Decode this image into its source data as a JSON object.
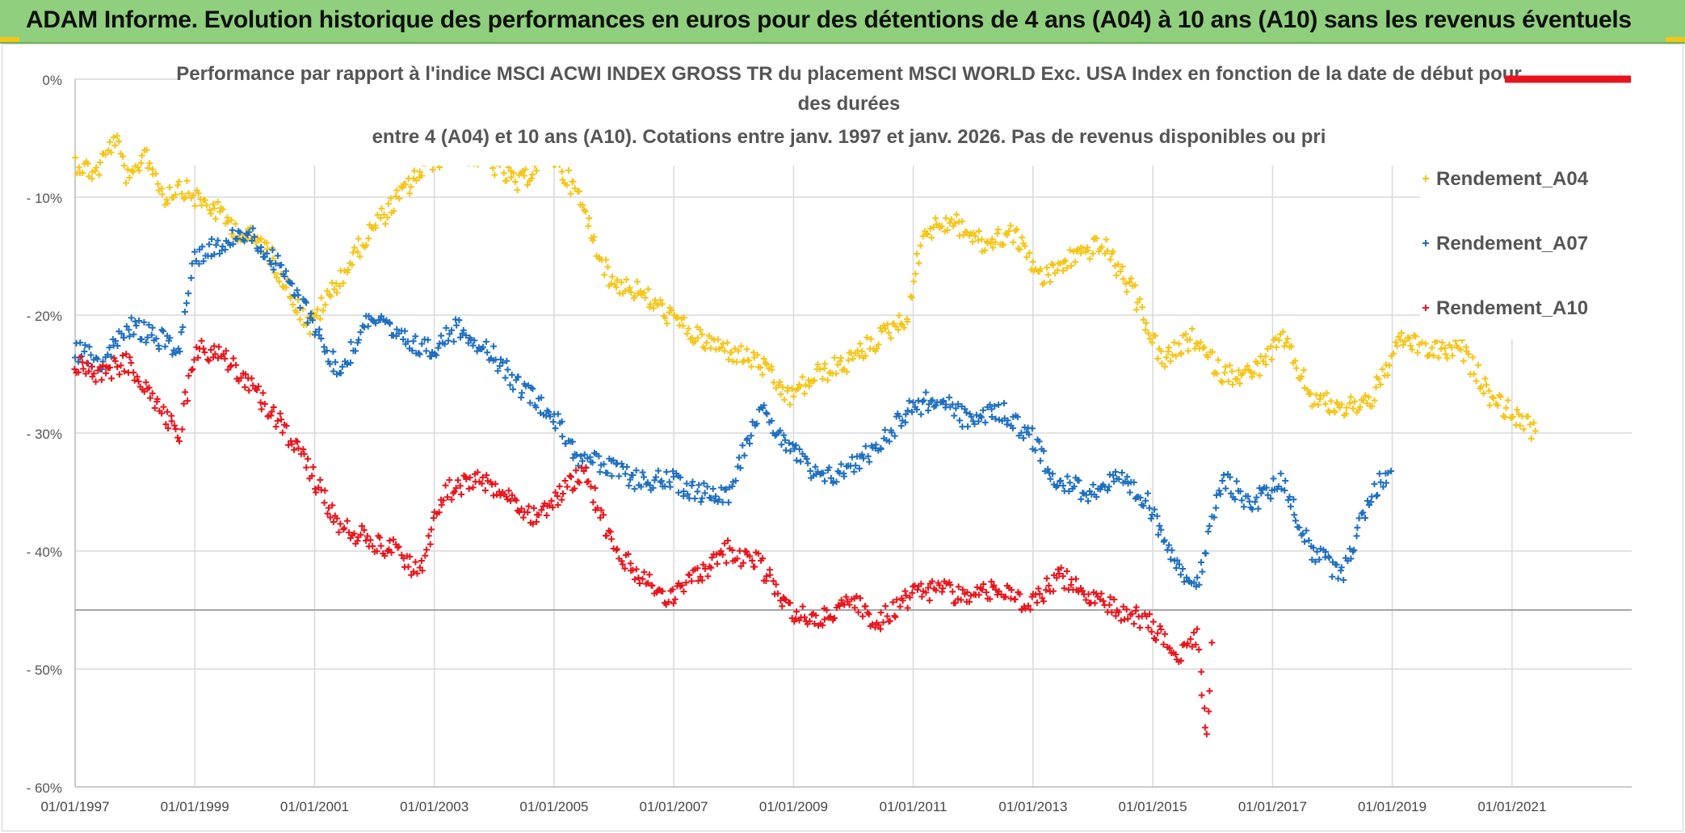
{
  "banner": {
    "title": "ADAM Informe. Evolution historique des performances en euros pour des détentions de 4 ans (A04) à 10 ans (A10) sans les revenus éventuels"
  },
  "chart_data": {
    "type": "scatter",
    "title_lines": [
      "Performance par rapport à l'indice MSCI ACWI INDEX GROSS TR  du placement MSCI WORLD Exc. USA Index en fonction de la date de début pour",
      "des durées",
      "entre 4 (A04) et 10 ans (A10). Cotations entre janv. 1997 et janv. 2026. Pas de revenus disponibles ou pri"
    ],
    "xlabel": "",
    "ylabel": "",
    "xlim": [
      "1997-01-01",
      "2023-01-01"
    ],
    "ylim": [
      -60,
      0
    ],
    "x_ticks": [
      "01/01/1997",
      "01/01/1999",
      "01/01/2001",
      "01/01/2003",
      "01/01/2005",
      "01/01/2007",
      "01/01/2009",
      "01/01/2011",
      "01/01/2013",
      "01/01/2015",
      "01/01/2017",
      "01/01/2019",
      "01/01/2021"
    ],
    "y_ticks": [
      "0%",
      "- 10%",
      "- 20%",
      "- 30%",
      "- 40%",
      "- 50%",
      "- 60%"
    ],
    "y_tick_values": [
      0,
      -10,
      -20,
      -30,
      -40,
      -50,
      -60
    ],
    "grid": true,
    "reference_line": -45,
    "legend_position": "right",
    "series": [
      {
        "name": "Rendement_A04",
        "color": "#f5c518",
        "marker": "plus",
        "points": [
          [
            "1997-01-01",
            -7
          ],
          [
            "1997-05-01",
            -8
          ],
          [
            "1997-09-01",
            -5
          ],
          [
            "1997-12-01",
            -9
          ],
          [
            "1998-03-01",
            -6
          ],
          [
            "1998-07-01",
            -10
          ],
          [
            "1998-10-01",
            -9
          ],
          [
            "1999-01-01",
            -10
          ],
          [
            "1999-05-01",
            -11
          ],
          [
            "1999-10-01",
            -13
          ],
          [
            "2000-03-01",
            -14
          ],
          [
            "2000-08-01",
            -18
          ],
          [
            "2000-12-01",
            -21
          ],
          [
            "2001-06-01",
            -17
          ],
          [
            "2001-12-01",
            -13
          ],
          [
            "2002-06-01",
            -10
          ],
          [
            "2002-12-01",
            -7
          ],
          [
            "2003-06-01",
            -6
          ],
          [
            "2003-12-01",
            -7
          ],
          [
            "2004-06-01",
            -9
          ],
          [
            "2004-12-01",
            -6
          ],
          [
            "2005-06-01",
            -10
          ],
          [
            "2005-12-01",
            -17
          ],
          [
            "2006-06-01",
            -18
          ],
          [
            "2006-12-01",
            -20
          ],
          [
            "2007-06-01",
            -22
          ],
          [
            "2007-12-01",
            -23
          ],
          [
            "2008-06-01",
            -24
          ],
          [
            "2008-12-01",
            -27
          ],
          [
            "2009-06-01",
            -25
          ],
          [
            "2009-12-01",
            -24
          ],
          [
            "2010-06-01",
            -22
          ],
          [
            "2010-12-01",
            -20
          ],
          [
            "2011-03-01",
            -13
          ],
          [
            "2011-09-01",
            -12
          ],
          [
            "2012-03-01",
            -14
          ],
          [
            "2012-09-01",
            -13
          ],
          [
            "2013-03-01",
            -17
          ],
          [
            "2013-09-01",
            -15
          ],
          [
            "2014-03-01",
            -14
          ],
          [
            "2014-09-01",
            -18
          ],
          [
            "2015-03-01",
            -24
          ],
          [
            "2015-09-01",
            -22
          ],
          [
            "2016-03-01",
            -25
          ],
          [
            "2016-09-01",
            -25
          ],
          [
            "2017-03-01",
            -22
          ],
          [
            "2017-09-01",
            -27
          ],
          [
            "2018-03-01",
            -28
          ],
          [
            "2018-09-01",
            -27
          ],
          [
            "2019-03-01",
            -22
          ],
          [
            "2019-09-01",
            -23
          ],
          [
            "2020-03-01",
            -23
          ],
          [
            "2020-09-01",
            -27
          ],
          [
            "2021-06-01",
            -30
          ]
        ]
      },
      {
        "name": "Rendement_A07",
        "color": "#1f6fbf",
        "marker": "plus",
        "points": [
          [
            "1997-01-01",
            -23
          ],
          [
            "1997-06-01",
            -24
          ],
          [
            "1997-12-01",
            -21
          ],
          [
            "1998-06-01",
            -22
          ],
          [
            "1998-10-01",
            -23
          ],
          [
            "1999-01-01",
            -15
          ],
          [
            "1999-06-01",
            -14
          ],
          [
            "1999-12-01",
            -13
          ],
          [
            "2000-06-01",
            -16
          ],
          [
            "2000-12-01",
            -20
          ],
          [
            "2001-06-01",
            -25
          ],
          [
            "2001-12-01",
            -20
          ],
          [
            "2002-06-01",
            -22
          ],
          [
            "2002-12-01",
            -23
          ],
          [
            "2003-06-01",
            -21
          ],
          [
            "2003-12-01",
            -23
          ],
          [
            "2004-06-01",
            -26
          ],
          [
            "2004-12-01",
            -28
          ],
          [
            "2005-06-01",
            -32
          ],
          [
            "2005-12-01",
            -33
          ],
          [
            "2006-06-01",
            -34
          ],
          [
            "2006-12-01",
            -34
          ],
          [
            "2007-06-01",
            -35
          ],
          [
            "2007-12-01",
            -35
          ],
          [
            "2008-06-01",
            -28
          ],
          [
            "2008-12-01",
            -31
          ],
          [
            "2009-06-01",
            -34
          ],
          [
            "2009-12-01",
            -33
          ],
          [
            "2010-06-01",
            -31
          ],
          [
            "2010-12-01",
            -28
          ],
          [
            "2011-06-01",
            -27
          ],
          [
            "2011-12-01",
            -29
          ],
          [
            "2012-06-01",
            -28
          ],
          [
            "2012-12-01",
            -30
          ],
          [
            "2013-06-01",
            -34
          ],
          [
            "2013-12-01",
            -35
          ],
          [
            "2014-06-01",
            -34
          ],
          [
            "2014-12-01",
            -36
          ],
          [
            "2015-06-01",
            -41
          ],
          [
            "2015-10-01",
            -43
          ],
          [
            "2016-03-01",
            -34
          ],
          [
            "2016-09-01",
            -36
          ],
          [
            "2017-03-01",
            -34
          ],
          [
            "2017-09-01",
            -40
          ],
          [
            "2018-03-01",
            -42
          ],
          [
            "2018-09-01",
            -35
          ],
          [
            "2019-01-01",
            -33
          ]
        ]
      },
      {
        "name": "Rendement_A10",
        "color": "#e8141c",
        "marker": "plus",
        "points": [
          [
            "1997-01-01",
            -24
          ],
          [
            "1997-06-01",
            -25
          ],
          [
            "1997-12-01",
            -24
          ],
          [
            "1998-06-01",
            -28
          ],
          [
            "1998-10-01",
            -30
          ],
          [
            "1999-01-01",
            -23
          ],
          [
            "1999-06-01",
            -23
          ],
          [
            "1999-12-01",
            -26
          ],
          [
            "2000-06-01",
            -29
          ],
          [
            "2000-12-01",
            -33
          ],
          [
            "2001-06-01",
            -38
          ],
          [
            "2001-12-01",
            -39
          ],
          [
            "2002-06-01",
            -40
          ],
          [
            "2002-10-01",
            -42
          ],
          [
            "2003-03-01",
            -35
          ],
          [
            "2003-09-01",
            -34
          ],
          [
            "2004-03-01",
            -35
          ],
          [
            "2004-09-01",
            -37
          ],
          [
            "2005-03-01",
            -35
          ],
          [
            "2005-07-01",
            -33
          ],
          [
            "2006-01-01",
            -40
          ],
          [
            "2006-06-01",
            -42
          ],
          [
            "2006-12-01",
            -44
          ],
          [
            "2007-06-01",
            -42
          ],
          [
            "2007-12-01",
            -40
          ],
          [
            "2008-06-01",
            -41
          ],
          [
            "2008-12-01",
            -45
          ],
          [
            "2009-06-01",
            -46
          ],
          [
            "2009-12-01",
            -44
          ],
          [
            "2010-06-01",
            -46
          ],
          [
            "2010-12-01",
            -44
          ],
          [
            "2011-06-01",
            -43
          ],
          [
            "2011-12-01",
            -44
          ],
          [
            "2012-06-01",
            -43
          ],
          [
            "2012-12-01",
            -45
          ],
          [
            "2013-06-01",
            -42
          ],
          [
            "2013-12-01",
            -44
          ],
          [
            "2014-06-01",
            -45
          ],
          [
            "2014-12-01",
            -46
          ],
          [
            "2015-06-01",
            -49
          ],
          [
            "2015-10-01",
            -47
          ],
          [
            "2016-01-01",
            -46
          ],
          [
            "2015-12-01",
            -56
          ]
        ]
      }
    ]
  }
}
